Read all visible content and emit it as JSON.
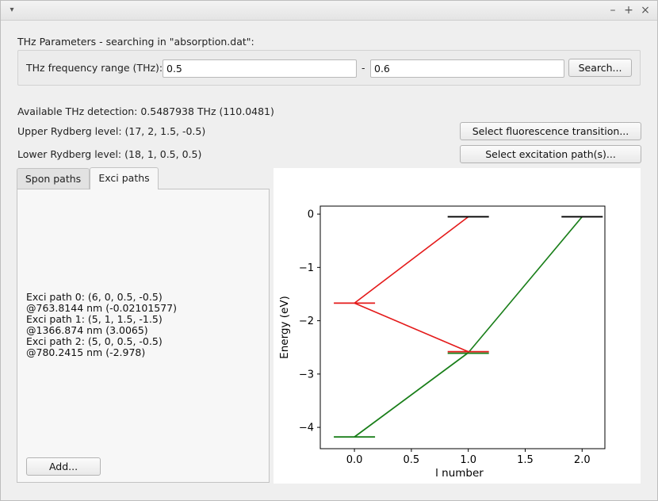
{
  "window": {
    "menu_glyph": "▾",
    "minimize_glyph": "–",
    "maximize_glyph": "+",
    "close_glyph": "×"
  },
  "params": {
    "heading": "THz Parameters - searching in \"absorption.dat\":",
    "range_label": "THz frequency range (THz):",
    "range_min": "0.5",
    "range_sep": "-",
    "range_max": "0.6",
    "search_button": "Search..."
  },
  "info": {
    "detection": "Available THz detection: 0.5487938 THz (110.0481)",
    "upper_level": "Upper Rydberg level: (17, 2, 1.5, -0.5)",
    "lower_level": "Lower Rydberg level: (18, 1, 0.5, 0.5)",
    "fluorescence_button": "Select fluorescence transition...",
    "excitation_button": "Select excitation path(s)..."
  },
  "tabs": [
    "Spon paths",
    "Exci paths"
  ],
  "exci_paths_text": "Exci path 0: (6, 0, 0.5, -0.5)\n@763.8144 nm (-0.02101577)\nExci path 1: (5, 1, 1.5, -1.5)\n@1366.874 nm (3.0065)\nExci path 2: (5, 0, 0.5, -0.5)\n@780.2415 nm (-2.978)",
  "add_button": "Add...",
  "chart_data": {
    "type": "line",
    "xlabel": "l number",
    "ylabel": "Energy (eV)",
    "xlim": [
      -0.3,
      2.2
    ],
    "ylim": [
      -4.4,
      0.15
    ],
    "xticks": [
      "0.0",
      "0.5",
      "1.0",
      "1.5",
      "2.0"
    ],
    "yticks": [
      "0",
      "−1",
      "−2",
      "−3",
      "−4"
    ],
    "grid": false,
    "levels": [
      {
        "x": 1.0,
        "y": -0.05,
        "color": "#000000"
      },
      {
        "x": 2.0,
        "y": -0.05,
        "color": "#000000"
      },
      {
        "x": 0.0,
        "y": -1.67,
        "color": "#e41a1a"
      },
      {
        "x": 1.0,
        "y": -2.58,
        "color": "#e41a1a"
      },
      {
        "x": 1.0,
        "y": -2.61,
        "color": "#1a7f1a"
      },
      {
        "x": 0.0,
        "y": -4.18,
        "color": "#1a7f1a"
      }
    ],
    "series": [
      {
        "color": "#e41a1a",
        "x": [
          0.0,
          1.0
        ],
        "y": [
          -1.67,
          -0.05
        ]
      },
      {
        "color": "#e41a1a",
        "x": [
          0.0,
          1.0
        ],
        "y": [
          -1.67,
          -2.58
        ]
      },
      {
        "color": "#1a7f1a",
        "x": [
          0.0,
          1.0
        ],
        "y": [
          -4.18,
          -2.6
        ]
      },
      {
        "color": "#1a7f1a",
        "x": [
          0.0,
          1.0,
          2.0
        ],
        "y": [
          -4.18,
          -2.6,
          -0.05
        ]
      }
    ]
  }
}
